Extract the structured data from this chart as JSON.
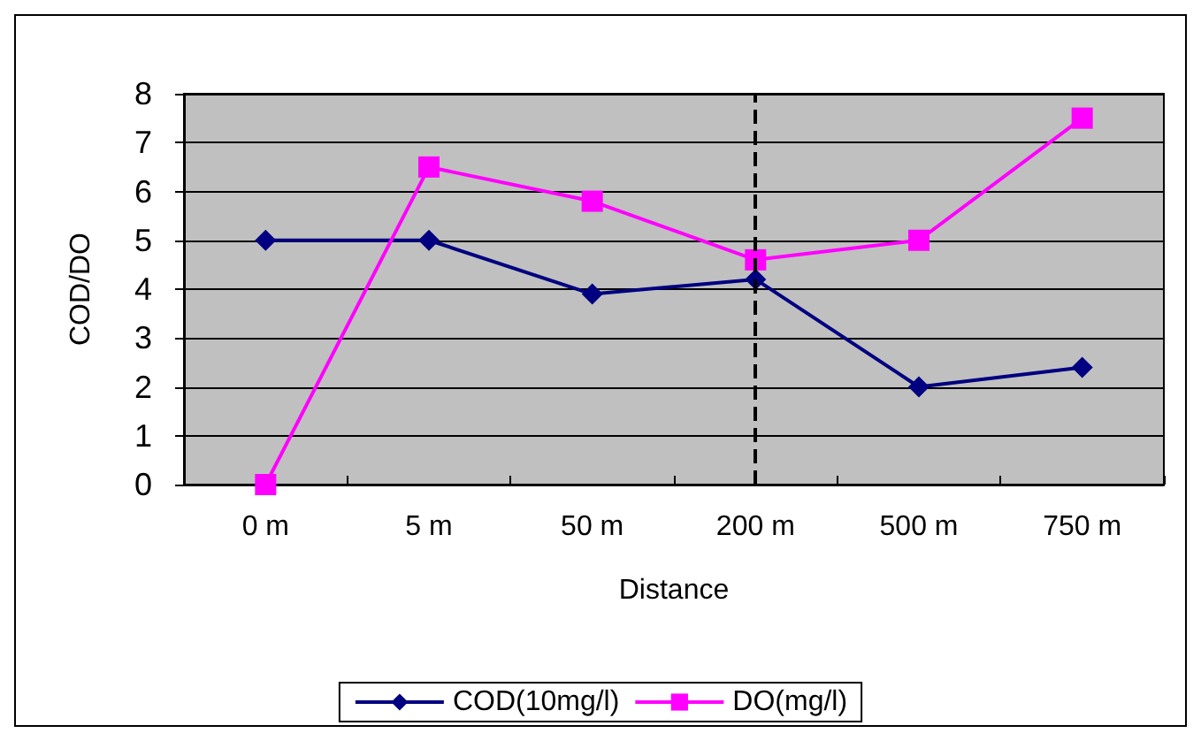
{
  "chart_data": {
    "type": "line",
    "xlabel": "Distance",
    "ylabel": "COD/DO",
    "categories": [
      "0 m",
      "5 m",
      "50 m",
      "200 m",
      "500 m",
      "750 m"
    ],
    "series": [
      {
        "name": "COD(10mg/l)",
        "color": "#000080",
        "marker": "diamond",
        "values": [
          5.0,
          5.0,
          3.9,
          4.2,
          2.0,
          2.4
        ]
      },
      {
        "name": "DO(mg/l)",
        "color": "#ff00ff",
        "marker": "square",
        "values": [
          0.0,
          6.5,
          5.8,
          4.6,
          5.0,
          7.5
        ]
      }
    ],
    "ylim": [
      0,
      8
    ],
    "yticks": [
      0,
      1,
      2,
      3,
      4,
      5,
      6,
      7,
      8
    ],
    "grid": "y",
    "legend": "bottom",
    "ref_lines": [
      {
        "axis": "x",
        "value": "200 m",
        "color": "#000000",
        "line_style": "dashed"
      }
    ]
  }
}
